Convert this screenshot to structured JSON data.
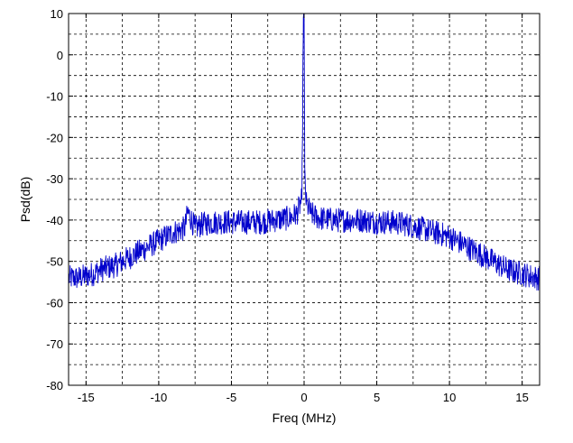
{
  "chart_data": {
    "type": "line",
    "title": "",
    "xlabel": "Freq (MHz)",
    "ylabel": "Psd(dB)",
    "xlim": [
      -16.2,
      16.2
    ],
    "ylim": [
      -80,
      10
    ],
    "x_ticks": [
      -15,
      -10,
      -5,
      0,
      5,
      10,
      15
    ],
    "y_ticks": [
      10,
      0,
      -10,
      -20,
      -30,
      -40,
      -50,
      -60,
      -70,
      -80
    ],
    "grid": true,
    "grid_style": "dashed",
    "series": [
      {
        "color": "#0000cc",
        "x": [
          -16.2,
          -15.5,
          -14.5,
          -14.0,
          -13.0,
          -12.0,
          -11.0,
          -10.0,
          -9.0,
          -8.2,
          -8.0,
          -7.5,
          -7.0,
          -6.0,
          -5.0,
          -4.0,
          -3.0,
          -2.0,
          -1.0,
          -0.5,
          -0.15,
          -0.05,
          0.0,
          0.05,
          0.15,
          0.5,
          1.0,
          2.0,
          3.0,
          4.0,
          5.0,
          6.0,
          7.0,
          8.0,
          9.0,
          10.0,
          11.0,
          12.0,
          13.0,
          14.0,
          15.0,
          16.0,
          16.2
        ],
        "y": [
          -54,
          -54,
          -53,
          -52,
          -51,
          -49,
          -47,
          -45,
          -43,
          -42,
          -38,
          -42,
          -41,
          -40.5,
          -40.5,
          -40.5,
          -40.5,
          -40,
          -39.5,
          -38.5,
          -35,
          9,
          9,
          -30,
          -36,
          -38.5,
          -39.5,
          -40,
          -40,
          -40,
          -40.5,
          -40.5,
          -41,
          -42,
          -43,
          -44,
          -46,
          -48,
          -50,
          -52,
          -53,
          -54,
          -54
        ]
      }
    ]
  }
}
